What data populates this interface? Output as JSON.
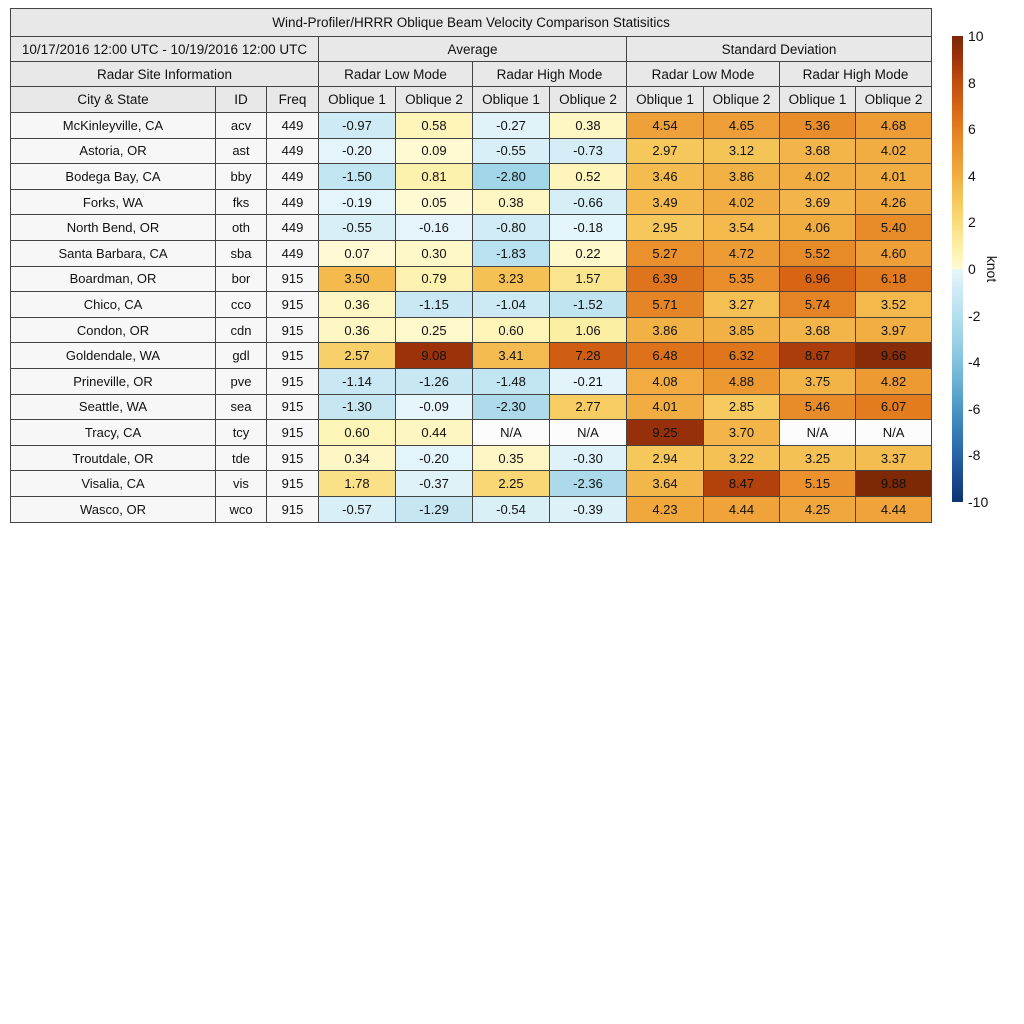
{
  "chart_data": {
    "type": "table",
    "title": "Wind-Profiler/HRRR Oblique Beam Velocity Comparison Statisitics",
    "date_range": "10/17/2016 12:00 UTC - 10/19/2016 12:00 UTC",
    "site_info_header": "Radar Site Information",
    "group_headers": [
      "Average",
      "Standard Deviation"
    ],
    "mode_headers": [
      "Radar Low Mode",
      "Radar High Mode",
      "Radar Low Mode",
      "Radar High Mode"
    ],
    "column_headers": [
      "City & State",
      "ID",
      "Freq",
      "Oblique 1",
      "Oblique 2",
      "Oblique 1",
      "Oblique 2",
      "Oblique 1",
      "Oblique 2",
      "Oblique 1",
      "Oblique 2"
    ],
    "rows": [
      {
        "city": "McKinleyville, CA",
        "id": "acv",
        "freq": "449",
        "values": [
          "-0.97",
          "0.58",
          "-0.27",
          "0.38",
          "4.54",
          "4.65",
          "5.36",
          "4.68"
        ]
      },
      {
        "city": "Astoria, OR",
        "id": "ast",
        "freq": "449",
        "values": [
          "-0.20",
          "0.09",
          "-0.55",
          "-0.73",
          "2.97",
          "3.12",
          "3.68",
          "4.02"
        ]
      },
      {
        "city": "Bodega Bay, CA",
        "id": "bby",
        "freq": "449",
        "values": [
          "-1.50",
          "0.81",
          "-2.80",
          "0.52",
          "3.46",
          "3.86",
          "4.02",
          "4.01"
        ]
      },
      {
        "city": "Forks, WA",
        "id": "fks",
        "freq": "449",
        "values": [
          "-0.19",
          "0.05",
          "0.38",
          "-0.66",
          "3.49",
          "4.02",
          "3.69",
          "4.26"
        ]
      },
      {
        "city": "North Bend, OR",
        "id": "oth",
        "freq": "449",
        "values": [
          "-0.55",
          "-0.16",
          "-0.80",
          "-0.18",
          "2.95",
          "3.54",
          "4.06",
          "5.40"
        ]
      },
      {
        "city": "Santa Barbara, CA",
        "id": "sba",
        "freq": "449",
        "values": [
          "0.07",
          "0.30",
          "-1.83",
          "0.22",
          "5.27",
          "4.72",
          "5.52",
          "4.60"
        ]
      },
      {
        "city": "Boardman, OR",
        "id": "bor",
        "freq": "915",
        "values": [
          "3.50",
          "0.79",
          "3.23",
          "1.57",
          "6.39",
          "5.35",
          "6.96",
          "6.18"
        ]
      },
      {
        "city": "Chico, CA",
        "id": "cco",
        "freq": "915",
        "values": [
          "0.36",
          "-1.15",
          "-1.04",
          "-1.52",
          "5.71",
          "3.27",
          "5.74",
          "3.52"
        ]
      },
      {
        "city": "Condon, OR",
        "id": "cdn",
        "freq": "915",
        "values": [
          "0.36",
          "0.25",
          "0.60",
          "1.06",
          "3.86",
          "3.85",
          "3.68",
          "3.97"
        ]
      },
      {
        "city": "Goldendale, WA",
        "id": "gdl",
        "freq": "915",
        "values": [
          "2.57",
          "9.08",
          "3.41",
          "7.28",
          "6.48",
          "6.32",
          "8.67",
          "9.66"
        ]
      },
      {
        "city": "Prineville, OR",
        "id": "pve",
        "freq": "915",
        "values": [
          "-1.14",
          "-1.26",
          "-1.48",
          "-0.21",
          "4.08",
          "4.88",
          "3.75",
          "4.82"
        ]
      },
      {
        "city": "Seattle, WA",
        "id": "sea",
        "freq": "915",
        "values": [
          "-1.30",
          "-0.09",
          "-2.30",
          "2.77",
          "4.01",
          "2.85",
          "5.46",
          "6.07"
        ]
      },
      {
        "city": "Tracy, CA",
        "id": "tcy",
        "freq": "915",
        "values": [
          "0.60",
          "0.44",
          "N/A",
          "N/A",
          "9.25",
          "3.70",
          "N/A",
          "N/A"
        ]
      },
      {
        "city": "Troutdale, OR",
        "id": "tde",
        "freq": "915",
        "values": [
          "0.34",
          "-0.20",
          "0.35",
          "-0.30",
          "2.94",
          "3.22",
          "3.25",
          "3.37"
        ]
      },
      {
        "city": "Visalia, CA",
        "id": "vis",
        "freq": "915",
        "values": [
          "1.78",
          "-0.37",
          "2.25",
          "-2.36",
          "3.64",
          "8.47",
          "5.15",
          "9.88"
        ]
      },
      {
        "city": "Wasco, OR",
        "id": "wco",
        "freq": "915",
        "values": [
          "-0.57",
          "-1.29",
          "-0.54",
          "-0.39",
          "4.23",
          "4.44",
          "4.25",
          "4.44"
        ]
      }
    ],
    "colorbar": {
      "label": "knot",
      "min": -10,
      "max": 10,
      "ticks": [
        10,
        8,
        6,
        4,
        2,
        0,
        -2,
        -4,
        -6,
        -8,
        -10
      ],
      "positive_stops": [
        "#fffbd6",
        "#fcefa4",
        "#f9dc7d",
        "#f6c75a",
        "#f1ad41",
        "#ec9630",
        "#e37e20",
        "#d66414",
        "#c24d0e",
        "#9f330a",
        "#7b2708"
      ],
      "negative_stops": [
        "#e8f6fb",
        "#cdeaf4",
        "#b5dfee",
        "#9cd2e6",
        "#82c2dc",
        "#65aed1",
        "#4b96c4",
        "#377db6",
        "#2763a7",
        "#1a4a90",
        "#0e3471"
      ]
    },
    "colors": {
      "header_bg": "#e8e8e8",
      "site_bg": "#f7f7f7",
      "na_bg": "#fcfcfc",
      "border": "#444444",
      "text": "#111111"
    }
  }
}
